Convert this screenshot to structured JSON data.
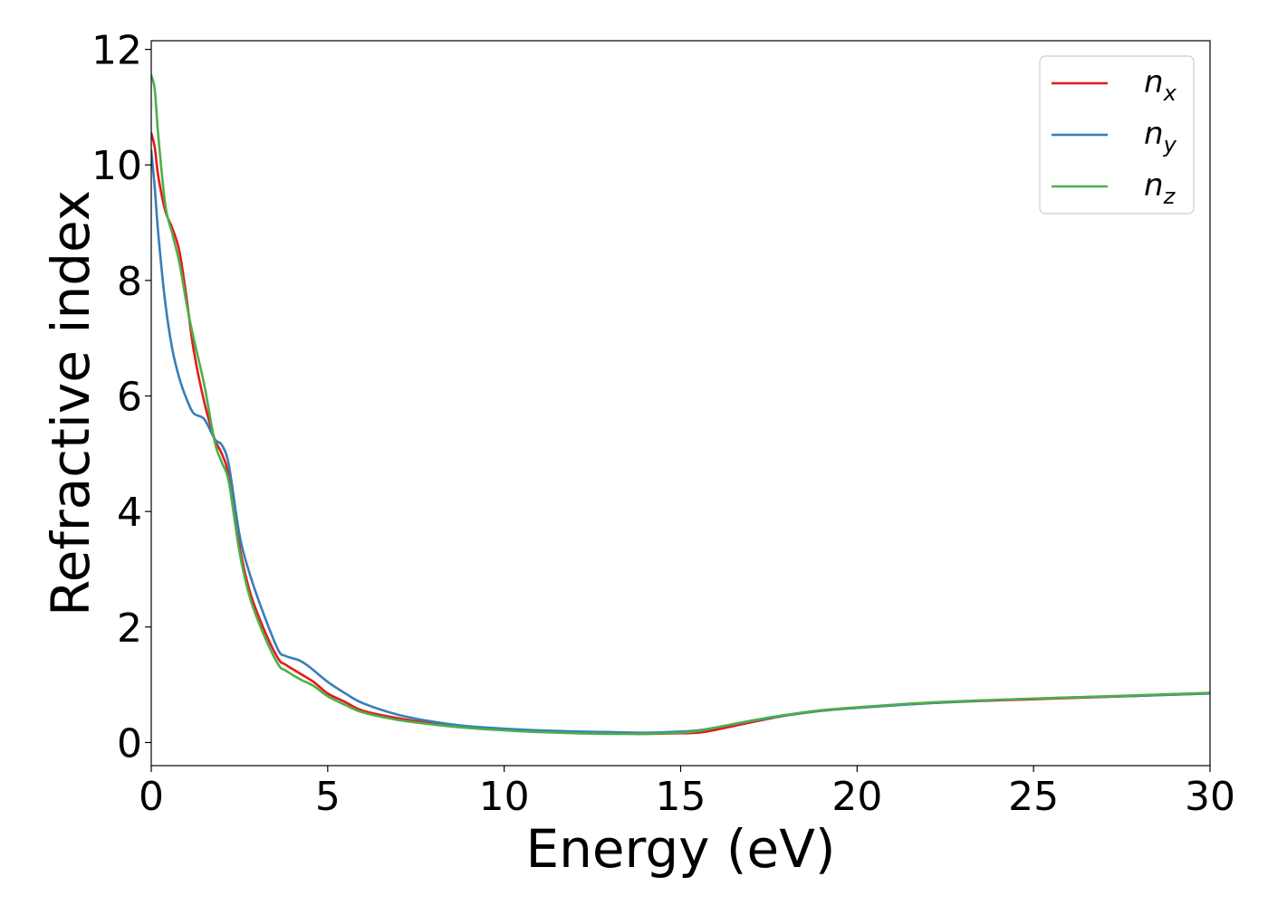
{
  "chart_data": {
    "type": "line",
    "xlabel": "Energy (eV)",
    "ylabel": "Refractive index",
    "xlim": [
      0,
      30
    ],
    "ylim": [
      -0.4,
      12.15
    ],
    "xticks": [
      0,
      5,
      10,
      15,
      20,
      25,
      30
    ],
    "yticks": [
      0,
      2,
      4,
      6,
      8,
      10,
      12
    ],
    "grid": false,
    "legend_position": "top-right",
    "series": [
      {
        "name": "n_x",
        "legend_main": "n",
        "legend_sub": "x",
        "color": "#e41a1c",
        "x": [
          0,
          0.1,
          0.2,
          0.4,
          0.6,
          0.8,
          1.0,
          1.2,
          1.5,
          1.8,
          2.0,
          2.2,
          2.5,
          2.8,
          3.2,
          3.6,
          3.8,
          4.2,
          4.6,
          5.0,
          5.5,
          6.0,
          7.0,
          8.0,
          9.0,
          10.0,
          11.0,
          12.0,
          13.0,
          14.0,
          15.0,
          15.5,
          16.0,
          17.0,
          18.0,
          19.0,
          20.0,
          22.0,
          24.0,
          26.0,
          28.0,
          30.0
        ],
        "y": [
          10.55,
          10.3,
          9.8,
          9.2,
          8.9,
          8.5,
          7.7,
          6.8,
          5.9,
          5.25,
          5.0,
          4.6,
          3.4,
          2.6,
          1.95,
          1.45,
          1.35,
          1.2,
          1.05,
          0.85,
          0.7,
          0.55,
          0.42,
          0.33,
          0.27,
          0.22,
          0.19,
          0.17,
          0.16,
          0.15,
          0.16,
          0.17,
          0.22,
          0.35,
          0.47,
          0.55,
          0.6,
          0.68,
          0.73,
          0.77,
          0.81,
          0.85
        ]
      },
      {
        "name": "n_y",
        "legend_main": "n",
        "legend_sub": "y",
        "color": "#377eb8",
        "x": [
          0,
          0.1,
          0.2,
          0.4,
          0.6,
          0.8,
          1.0,
          1.2,
          1.5,
          1.8,
          2.0,
          2.2,
          2.5,
          2.8,
          3.2,
          3.6,
          3.8,
          4.2,
          4.5,
          5.0,
          5.5,
          6.0,
          7.0,
          8.0,
          9.0,
          10.0,
          11.0,
          12.0,
          13.0,
          14.0,
          15.0,
          15.5,
          16.0,
          17.0,
          18.0,
          19.0,
          20.0,
          22.0,
          24.0,
          26.0,
          28.0,
          30.0
        ],
        "y": [
          10.25,
          9.6,
          8.8,
          7.6,
          6.8,
          6.3,
          5.95,
          5.7,
          5.6,
          5.25,
          5.15,
          4.8,
          3.6,
          2.9,
          2.2,
          1.6,
          1.5,
          1.42,
          1.3,
          1.05,
          0.85,
          0.68,
          0.48,
          0.36,
          0.28,
          0.24,
          0.21,
          0.19,
          0.18,
          0.17,
          0.19,
          0.21,
          0.26,
          0.37,
          0.47,
          0.55,
          0.6,
          0.68,
          0.74,
          0.78,
          0.81,
          0.85
        ]
      },
      {
        "name": "n_z",
        "legend_main": "n",
        "legend_sub": "z",
        "color": "#4daf4a",
        "x": [
          0,
          0.1,
          0.2,
          0.4,
          0.6,
          0.8,
          1.0,
          1.2,
          1.5,
          1.8,
          2.0,
          2.2,
          2.5,
          2.8,
          3.2,
          3.6,
          3.8,
          4.2,
          4.6,
          5.0,
          5.5,
          6.0,
          7.0,
          8.0,
          9.0,
          10.0,
          11.0,
          12.0,
          13.0,
          14.0,
          15.0,
          15.5,
          16.0,
          17.0,
          18.0,
          19.0,
          20.0,
          22.0,
          24.0,
          26.0,
          28.0,
          30.0
        ],
        "y": [
          11.55,
          11.3,
          10.5,
          9.3,
          8.8,
          8.3,
          7.6,
          7.0,
          6.2,
          5.2,
          4.85,
          4.5,
          3.3,
          2.5,
          1.85,
          1.35,
          1.25,
          1.1,
          0.98,
          0.8,
          0.65,
          0.52,
          0.39,
          0.31,
          0.25,
          0.21,
          0.18,
          0.16,
          0.15,
          0.15,
          0.17,
          0.2,
          0.26,
          0.38,
          0.48,
          0.56,
          0.61,
          0.69,
          0.74,
          0.78,
          0.82,
          0.86
        ]
      }
    ]
  }
}
